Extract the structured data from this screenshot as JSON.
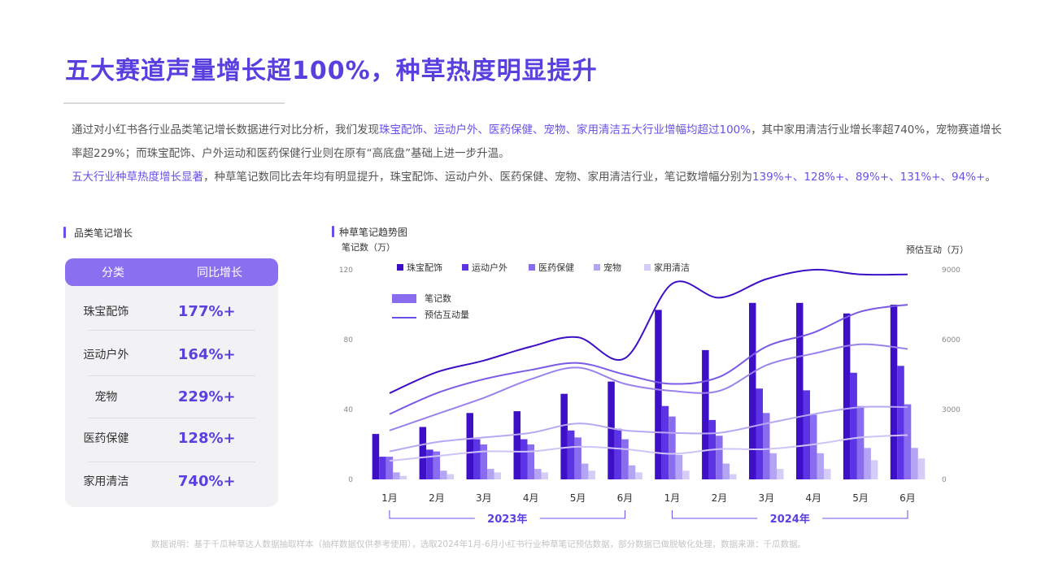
{
  "title": "五大赛道声量增长超100%，种草热度明显提升",
  "desc": {
    "p1_a": "通过对小红书各行业品类笔记增长数据进行对比分析，我们发现",
    "p1_hl": "珠宝配饰、运动户外、医药保健、宠物、家用清洁五大行业增幅均超过100%",
    "p1_b": "，其中家用清洁行业增长率超740%，宠物赛道增长率超229%；而珠宝配饰、户外运动和医药保健行业则在原有“高底盘”基础上进一步升温。",
    "p2_hl": "五大行业种草热度增长显著",
    "p2_a": "，种草笔记数同比去年均有明显提升，珠宝配饰、运动户外、医药保健、宠物、家用清洁行业，笔记数增幅分别为",
    "p2_hl2": "139%+、128%+、89%+、131%+、94%+",
    "p2_b": "。"
  },
  "left_section": {
    "heading": "品类笔记增长",
    "col_category": "分类",
    "col_growth": "同比增长",
    "rows": [
      {
        "category": "珠宝配饰",
        "growth": "177%+"
      },
      {
        "category": "运动户外",
        "growth": "164%+"
      },
      {
        "category": "宠物",
        "growth": "229%+"
      },
      {
        "category": "医药保健",
        "growth": "128%+"
      },
      {
        "category": "家用清洁",
        "growth": "740%+"
      }
    ]
  },
  "right_section": {
    "heading": "种草笔记趋势图"
  },
  "footnote": "数据说明：基于千瓜种草达人数据抽取样本（抽样数据仅供参考使用），选取2024年1月-6月小红书行业种草笔记预估数据，部分数据已做脱敏化处理，数据来源：千瓜数据。",
  "chart_data": {
    "type": "bar",
    "ylabel": "笔记数（万）",
    "ylabel_right": "预估互动（万）",
    "ylim": [
      0,
      120
    ],
    "yticks": [
      0,
      40,
      80,
      120
    ],
    "ylim_right": [
      0,
      9000
    ],
    "yticks_right": [
      0,
      3000,
      6000,
      9000
    ],
    "categories": [
      "1月",
      "2月",
      "3月",
      "4月",
      "5月",
      "6月",
      "1月",
      "2月",
      "3月",
      "4月",
      "5月",
      "6月"
    ],
    "year_groups": [
      {
        "label": "2023年",
        "from": 0,
        "to": 5
      },
      {
        "label": "2024年",
        "from": 6,
        "to": 11
      }
    ],
    "series": [
      {
        "name": "珠宝配饰",
        "color": "#3d10c8",
        "values": [
          26,
          30,
          38,
          39,
          49,
          56,
          97,
          74,
          101,
          101,
          95,
          100
        ]
      },
      {
        "name": "运动户外",
        "color": "#5c34e6",
        "values": [
          13,
          17,
          23,
          23,
          28,
          29,
          42,
          34,
          52,
          51,
          61,
          65
        ]
      },
      {
        "name": "医药保健",
        "color": "#8a6cf0",
        "values": [
          13,
          16,
          20,
          20,
          24,
          23,
          36,
          25,
          38,
          37,
          42,
          43
        ]
      },
      {
        "name": "宠物",
        "color": "#b4a4f4",
        "values": [
          4,
          5,
          6,
          6,
          9,
          8,
          14,
          9,
          15,
          15,
          18,
          18
        ]
      },
      {
        "name": "家用清洁",
        "color": "#d6ccf8",
        "values": [
          2,
          3,
          4,
          4,
          5,
          4,
          5,
          3,
          6,
          6,
          11,
          12
        ]
      }
    ],
    "interaction_series": [
      {
        "name": "珠宝配饰",
        "color": "#3d10c8",
        "values": [
          3700,
          4600,
          5100,
          5700,
          6100,
          5200,
          8400,
          7800,
          8600,
          9000,
          8800,
          8800
        ]
      },
      {
        "name": "运动户外",
        "color": "#7a5ae6",
        "values": [
          2800,
          3700,
          4300,
          4700,
          5000,
          4500,
          4100,
          4400,
          5700,
          6300,
          7200,
          7500
        ]
      },
      {
        "name": "医药保健",
        "color": "#9a82ee",
        "values": [
          2100,
          2800,
          3500,
          4300,
          4800,
          4100,
          3800,
          3800,
          4900,
          5400,
          5800,
          5600
        ]
      },
      {
        "name": "宠物",
        "color": "#b8a8f4",
        "values": [
          1200,
          1600,
          1800,
          2000,
          2400,
          2100,
          2000,
          2000,
          2400,
          2800,
          3100,
          3100
        ]
      },
      {
        "name": "家用清洁",
        "color": "#cfc4f8",
        "values": [
          800,
          1000,
          1200,
          1200,
          1400,
          1300,
          1100,
          1300,
          1300,
          1500,
          1800,
          1900
        ]
      }
    ],
    "legend": [
      "珠宝配饰",
      "运动户外",
      "医药保健",
      "宠物",
      "家用清洁"
    ],
    "type_legend": {
      "bar": "笔记数",
      "line": "预估互动量"
    }
  }
}
